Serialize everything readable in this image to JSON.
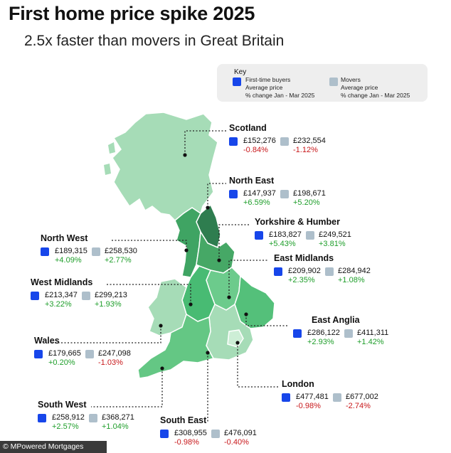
{
  "title": "First home price spike 2025",
  "subtitle": "2.5x faster than movers in Great Britain",
  "key": {
    "heading": "Key",
    "first_time": [
      "First-time buyers",
      "Average price",
      "% change Jan - Mar 2025"
    ],
    "movers": [
      "Movers",
      "Average price",
      "% change Jan - Mar 2025"
    ]
  },
  "colors": {
    "first_time_buyers": "#1746ea",
    "movers": "#aebfcb",
    "positive": "#1e9e2a",
    "negative": "#c8171a"
  },
  "regions": [
    {
      "name": "Scotland",
      "ftb_price": "£152,276",
      "ftb_change": "-0.84%",
      "mov_price": "£232,554",
      "mov_change": "-1.12%"
    },
    {
      "name": "North East",
      "ftb_price": "£147,937",
      "ftb_change": "+6.59%",
      "mov_price": "£198,671",
      "mov_change": "+5.20%"
    },
    {
      "name": "Yorkshire & Humber",
      "ftb_price": "£183,827",
      "ftb_change": "+5.43%",
      "mov_price": "£249,521",
      "mov_change": "+3.81%"
    },
    {
      "name": "North West",
      "ftb_price": "£189,315",
      "ftb_change": "+4.09%",
      "mov_price": "£258,530",
      "mov_change": "+2.77%"
    },
    {
      "name": "East Midlands",
      "ftb_price": "£209,902",
      "ftb_change": "+2.35%",
      "mov_price": "£284,942",
      "mov_change": "+1.08%"
    },
    {
      "name": "West Midlands",
      "ftb_price": "£213,347",
      "ftb_change": "+3.22%",
      "mov_price": "£299,213",
      "mov_change": "+1.93%"
    },
    {
      "name": "East Anglia",
      "ftb_price": "£286,122",
      "ftb_change": "+2.93%",
      "mov_price": "£411,311",
      "mov_change": "+1.42%"
    },
    {
      "name": "Wales",
      "ftb_price": "£179,665",
      "ftb_change": "+0.20%",
      "mov_price": "£247,098",
      "mov_change": "-1.03%"
    },
    {
      "name": "London",
      "ftb_price": "£477,481",
      "ftb_change": "-0.98%",
      "mov_price": "£677,002",
      "mov_change": "-2.74%"
    },
    {
      "name": "South West",
      "ftb_price": "£258,912",
      "ftb_change": "+2.57%",
      "mov_price": "£368,271",
      "mov_change": "+1.04%"
    },
    {
      "name": "South East",
      "ftb_price": "£308,955",
      "ftb_change": "-0.98%",
      "mov_price": "£476,091",
      "mov_change": "-0.40%"
    }
  ],
  "credit": "© MPowered Mortgages"
}
